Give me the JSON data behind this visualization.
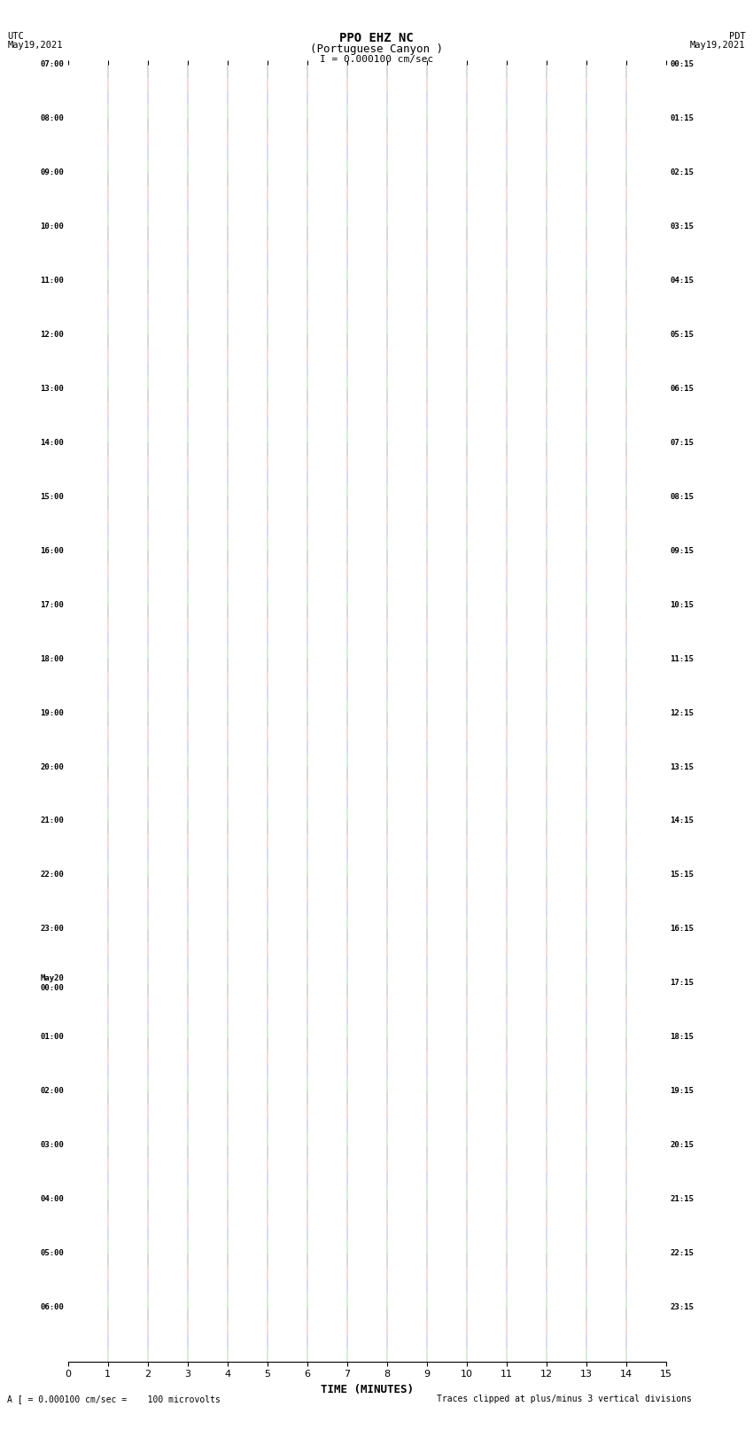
{
  "title_main": "PPO EHZ NC",
  "title_sub": "(Portuguese Canyon )",
  "scale_label": "I = 0.000100 cm/sec",
  "left_header_line1": "UTC",
  "left_header_line2": "May19,2021",
  "right_header_line1": "PDT",
  "right_header_line2": "May19,2021",
  "bottom_label": "A [ = 0.000100 cm/sec =    100 microvolts",
  "bottom_right": "Traces clipped at plus/minus 3 vertical divisions",
  "xlabel": "TIME (MINUTES)",
  "utc_times": [
    "07:00",
    "08:00",
    "09:00",
    "10:00",
    "11:00",
    "12:00",
    "13:00",
    "14:00",
    "15:00",
    "16:00",
    "17:00",
    "18:00",
    "19:00",
    "20:00",
    "21:00",
    "22:00",
    "23:00",
    "May20\n00:00",
    "01:00",
    "02:00",
    "03:00",
    "04:00",
    "05:00",
    "06:00"
  ],
  "pdt_times": [
    "00:15",
    "01:15",
    "02:15",
    "03:15",
    "04:15",
    "05:15",
    "06:15",
    "07:15",
    "08:15",
    "09:15",
    "10:15",
    "11:15",
    "12:15",
    "13:15",
    "14:15",
    "15:15",
    "16:15",
    "17:15",
    "18:15",
    "19:15",
    "20:15",
    "21:15",
    "22:15",
    "23:15"
  ],
  "n_rows": 24,
  "n_traces_per_row": 4,
  "trace_colors": [
    "#000000",
    "#cc0000",
    "#0000cc",
    "#007700"
  ],
  "waveform_color": "#ffffff",
  "bg_color": "white",
  "fig_width": 8.5,
  "fig_height": 16.13,
  "xlim": [
    0,
    15
  ],
  "xticks": [
    0,
    1,
    2,
    3,
    4,
    5,
    6,
    7,
    8,
    9,
    10,
    11,
    12,
    13,
    14,
    15
  ]
}
